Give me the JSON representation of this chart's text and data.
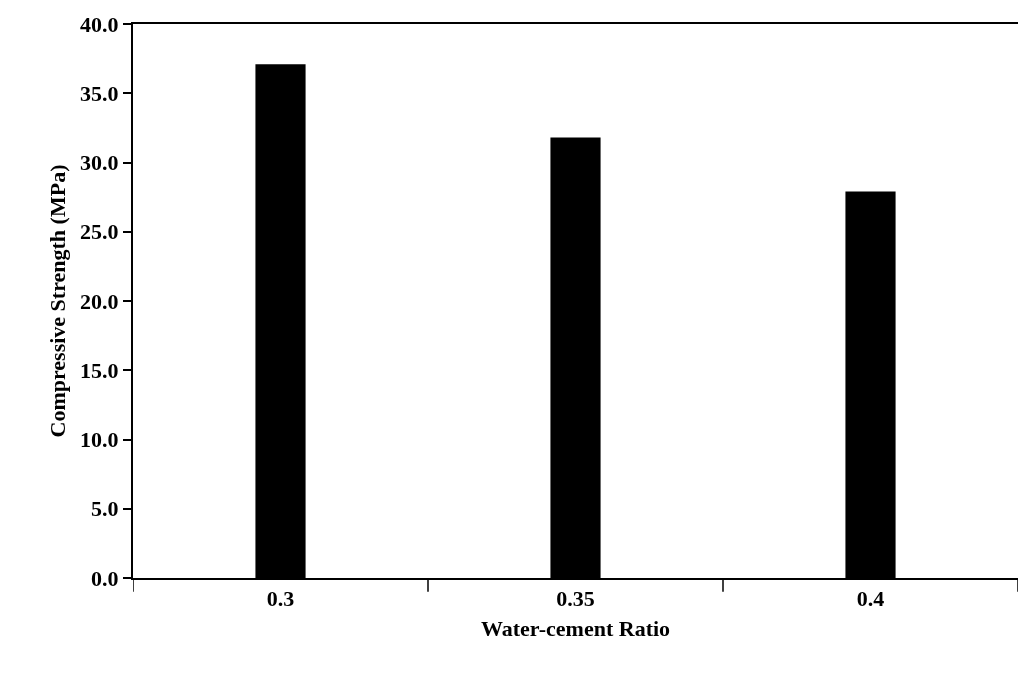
{
  "chart_data": {
    "type": "bar",
    "xlabel": "Water-cement Ratio",
    "ylabel": "Compressive Strength (MPa)",
    "categories": [
      "0.3",
      "0.35",
      "0.4"
    ],
    "values": [
      37.1,
      31.8,
      27.9
    ],
    "color": "#000000",
    "ylim": [
      0,
      40
    ],
    "yticks": [
      {
        "value": 0,
        "label": "0.0"
      },
      {
        "value": 5,
        "label": "5.0"
      },
      {
        "value": 10,
        "label": "10.0"
      },
      {
        "value": 15,
        "label": "15.0"
      },
      {
        "value": 20,
        "label": "20.0"
      },
      {
        "value": 25,
        "label": "25.0"
      },
      {
        "value": 30,
        "label": "30.0"
      },
      {
        "value": 35,
        "label": "35.0"
      },
      {
        "value": 40,
        "label": "40.0"
      }
    ],
    "tick_labels": "xy"
  }
}
